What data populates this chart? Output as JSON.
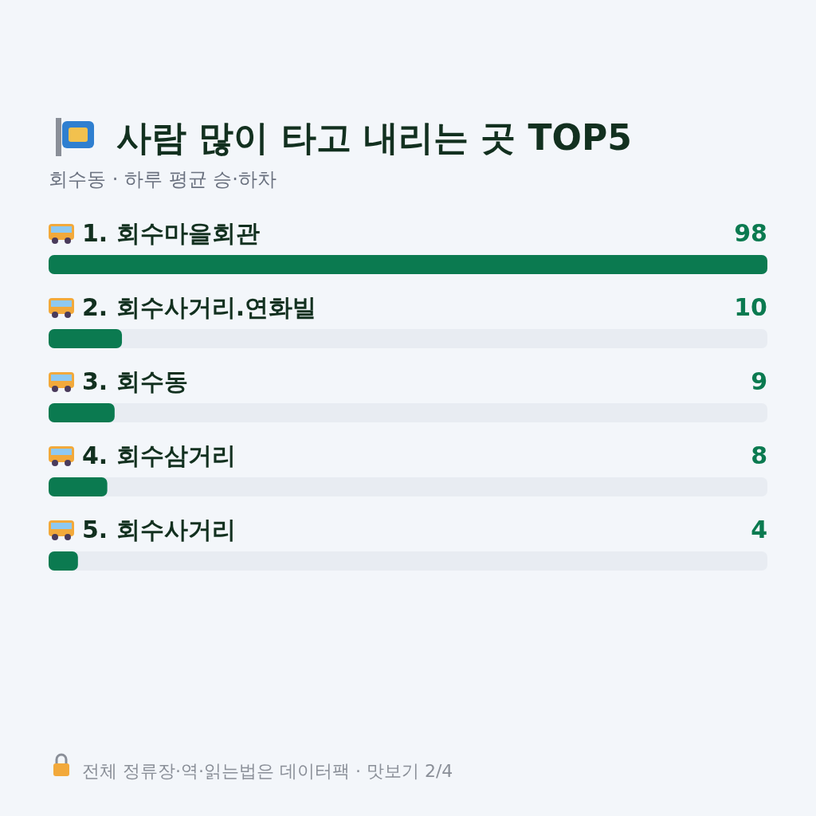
{
  "chart_data": {
    "type": "bar",
    "orientation": "horizontal",
    "title": "사람 많이 타고 내리는 곳 TOP5",
    "subtitle": "회수동 · 하루 평균 승·하차",
    "categories": [
      "1. 회수마을회관",
      "2. 회수사거리.연화빌",
      "3. 회수동",
      "4. 회수삼거리",
      "5. 회수사거리"
    ],
    "values": [
      98,
      10,
      9,
      8,
      4
    ],
    "color": "#0b7a50",
    "data_labels": true,
    "annotations": [
      "전체 정류장·역·읽는법은 데이터팩 · 맛보기 2/4"
    ]
  }
}
